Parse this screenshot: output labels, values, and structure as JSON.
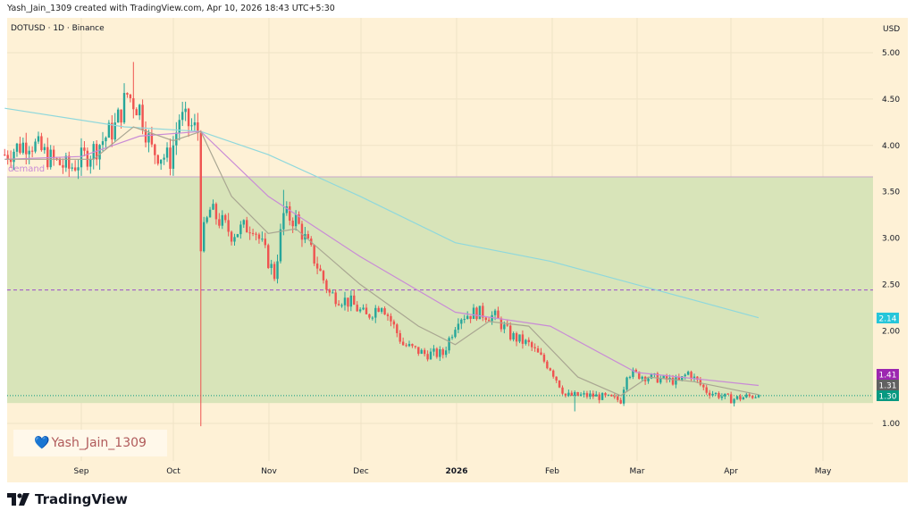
{
  "header": {
    "attribution": "Yash_Jain_1309 created with TradingView.com, Apr 10, 2026 18:43 UTC+5:30"
  },
  "symbol": "DOTUSD · 1D · Binance",
  "currency": "USD",
  "zone_label": "demand",
  "watermark": {
    "icon": "blue-heart-icon",
    "text": "Yash_Jain_1309"
  },
  "footer": {
    "logo_icon": "tradingview-logo-icon",
    "brand": "TradingView"
  },
  "colors": {
    "background": "#fef1d6",
    "zone": "#d8e4b9",
    "up": "#26a69a",
    "down": "#ef5350",
    "ma_long": "#8fd8dc",
    "ma_mid": "#c98bd6",
    "ma_short": "#a9a692",
    "dashed": "#9c4dcc"
  },
  "chart_data": {
    "type": "candlestick",
    "y_ticks": [
      "5.00",
      "4.50",
      "4.00",
      "3.50",
      "3.00",
      "2.50",
      "2.00",
      "1.00"
    ],
    "x_ticks": [
      "Sep",
      "Oct",
      "Nov",
      "Dec",
      "2026",
      "Feb",
      "Mar",
      "Apr",
      "May"
    ],
    "ylim": [
      0.8,
      5.2
    ],
    "close_path": [
      [
        "2025-08-07",
        3.9
      ],
      [
        "2025-08-15",
        4.05
      ],
      [
        "2025-08-22",
        3.85
      ],
      [
        "2025-08-28",
        3.75
      ],
      [
        "2025-09-05",
        3.95
      ],
      [
        "2025-09-12",
        4.2
      ],
      [
        "2025-09-16",
        4.55
      ],
      [
        "2025-09-20",
        4.4
      ],
      [
        "2025-09-24",
        3.95
      ],
      [
        "2025-09-30",
        3.85
      ],
      [
        "2025-10-03",
        4.3
      ],
      [
        "2025-10-09",
        4.15
      ],
      [
        "2025-10-10",
        2.95
      ],
      [
        "2025-10-13",
        3.3
      ],
      [
        "2025-10-20",
        3.05
      ],
      [
        "2025-10-27",
        3.15
      ],
      [
        "2025-11-03",
        2.6
      ],
      [
        "2025-11-06",
        3.25
      ],
      [
        "2025-11-10",
        3.2
      ],
      [
        "2025-11-15",
        2.85
      ],
      [
        "2025-11-21",
        2.4
      ],
      [
        "2025-11-28",
        2.3
      ],
      [
        "2025-12-03",
        2.15
      ],
      [
        "2025-12-08",
        2.3
      ],
      [
        "2025-12-15",
        1.85
      ],
      [
        "2025-12-22",
        1.75
      ],
      [
        "2025-12-28",
        1.75
      ],
      [
        "2026-01-02",
        2.15
      ],
      [
        "2026-01-08",
        2.2
      ],
      [
        "2026-01-14",
        2.15
      ],
      [
        "2026-01-19",
        1.95
      ],
      [
        "2026-01-25",
        1.85
      ],
      [
        "2026-02-01",
        1.6
      ],
      [
        "2026-02-06",
        1.3
      ],
      [
        "2026-02-15",
        1.3
      ],
      [
        "2026-02-24",
        1.25
      ],
      [
        "2026-02-26",
        1.55
      ],
      [
        "2026-03-05",
        1.5
      ],
      [
        "2026-03-15",
        1.45
      ],
      [
        "2026-03-18",
        1.55
      ],
      [
        "2026-03-24",
        1.35
      ],
      [
        "2026-04-01",
        1.26
      ],
      [
        "2026-04-10",
        1.31
      ]
    ],
    "notable_wicks": [
      [
        "2025-09-18",
        4.9,
        "high"
      ],
      [
        "2025-10-10",
        0.97,
        "low"
      ],
      [
        "2025-11-06",
        3.52,
        "high"
      ],
      [
        "2026-02-09",
        1.13,
        "low"
      ]
    ],
    "ma_long": [
      [
        "2025-08-07",
        4.4
      ],
      [
        "2025-09-15",
        4.2
      ],
      [
        "2025-10-10",
        4.15
      ],
      [
        "2025-11-01",
        3.9
      ],
      [
        "2025-12-01",
        3.45
      ],
      [
        "2026-01-01",
        2.95
      ],
      [
        "2026-02-01",
        2.75
      ],
      [
        "2026-03-01",
        2.5
      ],
      [
        "2026-04-10",
        2.14
      ]
    ],
    "ma_mid": [
      [
        "2025-08-07",
        3.85
      ],
      [
        "2025-09-01",
        3.88
      ],
      [
        "2025-09-20",
        4.1
      ],
      [
        "2025-10-10",
        4.15
      ],
      [
        "2025-11-01",
        3.45
      ],
      [
        "2025-12-01",
        2.8
      ],
      [
        "2026-01-01",
        2.2
      ],
      [
        "2026-02-01",
        2.05
      ],
      [
        "2026-03-01",
        1.55
      ],
      [
        "2026-04-10",
        1.41
      ]
    ],
    "ma_short": [
      [
        "2025-08-07",
        3.85
      ],
      [
        "2025-09-05",
        3.85
      ],
      [
        "2025-09-18",
        4.2
      ],
      [
        "2025-10-01",
        4.05
      ],
      [
        "2025-10-10",
        4.15
      ],
      [
        "2025-10-20",
        3.45
      ],
      [
        "2025-11-01",
        3.05
      ],
      [
        "2025-11-10",
        3.1
      ],
      [
        "2025-12-01",
        2.5
      ],
      [
        "2025-12-20",
        2.05
      ],
      [
        "2026-01-01",
        1.85
      ],
      [
        "2026-01-12",
        2.1
      ],
      [
        "2026-01-25",
        2.05
      ],
      [
        "2026-02-10",
        1.5
      ],
      [
        "2026-02-24",
        1.3
      ],
      [
        "2026-03-05",
        1.5
      ],
      [
        "2026-03-20",
        1.45
      ],
      [
        "2026-04-10",
        1.31
      ]
    ],
    "demand_zone": [
      1.22,
      3.66
    ],
    "dashed_level": 2.44,
    "last_price": 1.3,
    "labels": [
      {
        "value": "2.14",
        "color": "#26c6da"
      },
      {
        "value": "1.41",
        "color": "#9c27b0"
      },
      {
        "value": "1.31",
        "color": "#616161"
      },
      {
        "value": "1.30",
        "color": "#089981"
      }
    ]
  }
}
